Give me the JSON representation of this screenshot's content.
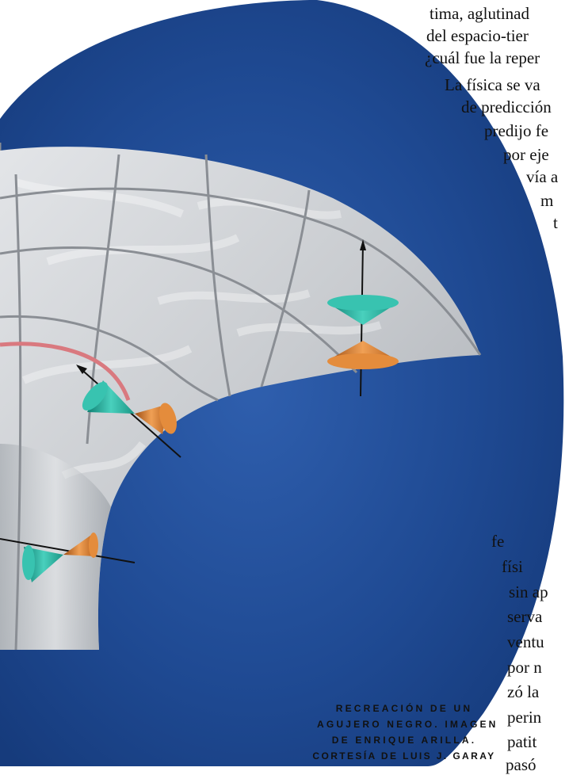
{
  "article": {
    "top_lines": [
      "tima, aglutinad",
      "del espacio-tier",
      "¿cuál fue la reper",
      "La física se va",
      "de predicción",
      "predijo fe",
      "por eje",
      "vía a",
      "m",
      "t"
    ],
    "bottom_lines": [
      "fe",
      "físi",
      "sin ap",
      "serva",
      "ventu",
      "por n",
      "zó la",
      "perin",
      "patit",
      "pasó"
    ]
  },
  "caption": {
    "lines": [
      "RECREACIÓN DE UN",
      "AGUJERO NEGRO. IMAGEN",
      "DE ENRIQUE ARILLA.",
      "CORTESÍA DE LUIS J. GARAY"
    ]
  },
  "figure": {
    "background_color": "#1f4a93",
    "surface_color": "#cfd2d6",
    "grid_color": "#8a8e94",
    "horizon_color": "#d9797f",
    "cone_teal": "#2fb6a4",
    "cone_orange": "#d97a2a"
  }
}
